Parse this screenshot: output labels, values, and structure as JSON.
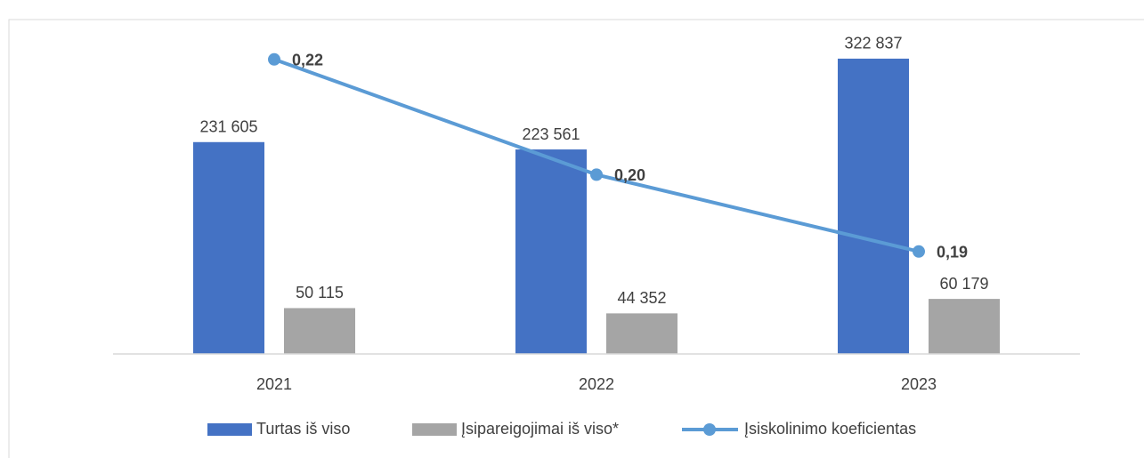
{
  "chart_data": {
    "type": "bar",
    "categories": [
      "2021",
      "2022",
      "2023"
    ],
    "series": [
      {
        "name": "Turtas iš viso",
        "type": "bar",
        "color": "#4472c4",
        "values": [
          231605,
          223561,
          322837
        ],
        "value_labels": [
          "231 605",
          "223 561",
          "322 837"
        ]
      },
      {
        "name": "Įsipareigojimai iš viso*",
        "type": "bar",
        "color": "#a5a5a5",
        "values": [
          50115,
          44352,
          60179
        ],
        "value_labels": [
          "50 115",
          "44 352",
          "60 179"
        ]
      },
      {
        "name": "Įsiskolinimo koeficientas",
        "type": "line",
        "axis": "y2",
        "color": "#5b9bd5",
        "values": [
          0.216,
          0.198,
          0.186
        ],
        "value_labels": [
          "0,22",
          "0,20",
          "0,19"
        ]
      }
    ],
    "ylim": [
      0,
      350000
    ],
    "y2lim": [
      0.17,
      0.22
    ],
    "grid": false,
    "legend": "bottom"
  }
}
